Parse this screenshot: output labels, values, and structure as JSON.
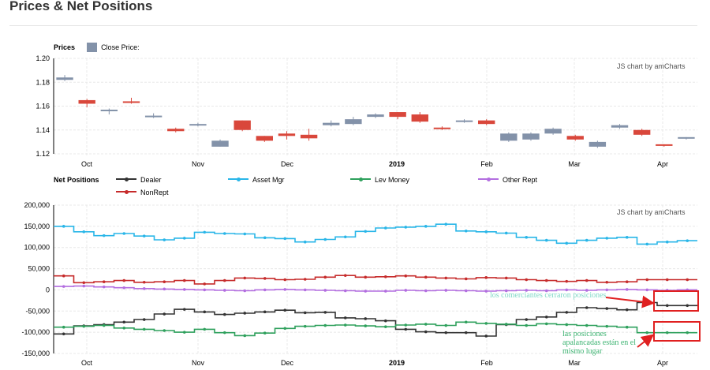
{
  "page": {
    "title": "Prices & Net Positions"
  },
  "colors": {
    "up": "#8392a9",
    "down": "#d9473b",
    "dealer": "#333333",
    "asset_mgr": "#29b6e8",
    "lev_money": "#2ea05c",
    "other_rept": "#b36ee0",
    "nonrept": "#c62b2b",
    "annot": "#e02020"
  },
  "credit": "JS chart by amCharts",
  "chart_data": [
    {
      "type": "candlestick",
      "title": "Prices",
      "legend": [
        {
          "name": "Close Price:"
        }
      ],
      "ylim": [
        1.12,
        1.2
      ],
      "y_ticks": [
        "1.20",
        "1.18",
        "1.16",
        "1.14",
        "1.12"
      ],
      "x_ticks": [
        "Oct",
        "Nov",
        "Dec",
        "2019",
        "Feb",
        "Mar",
        "Apr"
      ],
      "candles": [
        {
          "open": 1.182,
          "close": 1.184,
          "high": 1.186,
          "low": 1.181
        },
        {
          "open": 1.165,
          "close": 1.162,
          "high": 1.166,
          "low": 1.159
        },
        {
          "open": 1.156,
          "close": 1.157,
          "high": 1.158,
          "low": 1.153
        },
        {
          "open": 1.164,
          "close": 1.163,
          "high": 1.167,
          "low": 1.162
        },
        {
          "open": 1.151,
          "close": 1.152,
          "high": 1.154,
          "low": 1.15
        },
        {
          "open": 1.141,
          "close": 1.139,
          "high": 1.142,
          "low": 1.138
        },
        {
          "open": 1.144,
          "close": 1.145,
          "high": 1.146,
          "low": 1.143
        },
        {
          "open": 1.126,
          "close": 1.131,
          "high": 1.132,
          "low": 1.126
        },
        {
          "open": 1.148,
          "close": 1.14,
          "high": 1.148,
          "low": 1.139
        },
        {
          "open": 1.135,
          "close": 1.131,
          "high": 1.135,
          "low": 1.13
        },
        {
          "open": 1.137,
          "close": 1.135,
          "high": 1.139,
          "low": 1.132
        },
        {
          "open": 1.136,
          "close": 1.133,
          "high": 1.141,
          "low": 1.131
        },
        {
          "open": 1.144,
          "close": 1.146,
          "high": 1.148,
          "low": 1.143
        },
        {
          "open": 1.145,
          "close": 1.149,
          "high": 1.151,
          "low": 1.144
        },
        {
          "open": 1.151,
          "close": 1.153,
          "high": 1.154,
          "low": 1.15
        },
        {
          "open": 1.155,
          "close": 1.151,
          "high": 1.155,
          "low": 1.149
        },
        {
          "open": 1.153,
          "close": 1.147,
          "high": 1.155,
          "low": 1.146
        },
        {
          "open": 1.142,
          "close": 1.141,
          "high": 1.143,
          "low": 1.14
        },
        {
          "open": 1.147,
          "close": 1.148,
          "high": 1.149,
          "low": 1.146
        },
        {
          "open": 1.148,
          "close": 1.145,
          "high": 1.149,
          "low": 1.144
        },
        {
          "open": 1.131,
          "close": 1.137,
          "high": 1.138,
          "low": 1.13
        },
        {
          "open": 1.132,
          "close": 1.137,
          "high": 1.138,
          "low": 1.131
        },
        {
          "open": 1.137,
          "close": 1.141,
          "high": 1.142,
          "low": 1.136
        },
        {
          "open": 1.135,
          "close": 1.132,
          "high": 1.136,
          "low": 1.131
        },
        {
          "open": 1.126,
          "close": 1.13,
          "high": 1.131,
          "low": 1.125
        },
        {
          "open": 1.142,
          "close": 1.144,
          "high": 1.145,
          "low": 1.141
        },
        {
          "open": 1.14,
          "close": 1.136,
          "high": 1.141,
          "low": 1.135
        },
        {
          "open": 1.128,
          "close": 1.127,
          "high": 1.128,
          "low": 1.126
        },
        {
          "open": 1.133,
          "close": 1.134,
          "high": 1.134,
          "low": 1.132
        }
      ]
    },
    {
      "type": "line",
      "step": true,
      "title": "Net Positions",
      "ylim": [
        -150000,
        200000
      ],
      "y_ticks": [
        "200,000",
        "150,000",
        "100,000",
        "50,000",
        "0",
        "-50,000",
        "-100,000",
        "-150,000"
      ],
      "x_ticks": [
        "Oct",
        "Nov",
        "Dec",
        "2019",
        "Feb",
        "Mar",
        "Apr"
      ],
      "series": [
        {
          "name": "Dealer",
          "color": "#333333",
          "values": [
            -104000,
            -85000,
            -82000,
            -76000,
            -70000,
            -57000,
            -46000,
            -52000,
            -58000,
            -55000,
            -52000,
            -48000,
            -54000,
            -53000,
            -66000,
            -68000,
            -73000,
            -93000,
            -99000,
            -101000,
            -101000,
            -109000,
            -82000,
            -70000,
            -64000,
            -53000,
            -42000,
            -44000,
            -47000,
            -30000,
            -37000,
            -37000
          ]
        },
        {
          "name": "Asset Mgr",
          "color": "#29b6e8",
          "values": [
            150000,
            137000,
            128000,
            133000,
            127000,
            118000,
            122000,
            136000,
            133000,
            132000,
            123000,
            121000,
            113000,
            119000,
            125000,
            138000,
            146000,
            148000,
            150000,
            155000,
            139000,
            137000,
            134000,
            124000,
            117000,
            110000,
            117000,
            122000,
            124000,
            108000,
            113000,
            116000
          ]
        },
        {
          "name": "Lev Money",
          "color": "#2ea05c",
          "values": [
            -88000,
            -86000,
            -84000,
            -90000,
            -93000,
            -96000,
            -100000,
            -93000,
            -101000,
            -108000,
            -102000,
            -91000,
            -86000,
            -84000,
            -83000,
            -85000,
            -87000,
            -83000,
            -81000,
            -84000,
            -76000,
            -79000,
            -81000,
            -84000,
            -80000,
            -82000,
            -84000,
            -86000,
            -88000,
            -101000,
            -101000,
            -101000
          ]
        },
        {
          "name": "Other Rept",
          "color": "#b36ee0",
          "values": [
            8000,
            9000,
            7000,
            5000,
            3000,
            2000,
            1000,
            0,
            -1000,
            -2000,
            0,
            1000,
            0,
            -1000,
            -2000,
            -3000,
            -3000,
            -1000,
            -2000,
            -1000,
            -2000,
            -3000,
            -2000,
            -1000,
            -2000,
            0,
            -1000,
            0,
            1000,
            0,
            -1000,
            0
          ]
        },
        {
          "name": "NonRept",
          "color": "#c62b2b",
          "values": [
            33000,
            17000,
            19000,
            22000,
            18000,
            19000,
            22000,
            14000,
            22000,
            28000,
            27000,
            24000,
            25000,
            30000,
            34000,
            30000,
            31000,
            33000,
            30000,
            28000,
            26000,
            29000,
            28000,
            24000,
            22000,
            20000,
            22000,
            18000,
            19000,
            24000,
            24000,
            24000
          ]
        }
      ]
    }
  ],
  "annotations": [
    {
      "text": "los comerciantes cerraron posiciones",
      "color": "#7fd8c6"
    },
    {
      "text": "las posiciones apalancadas están en el mismo lugar",
      "color": "#3cb371"
    }
  ]
}
